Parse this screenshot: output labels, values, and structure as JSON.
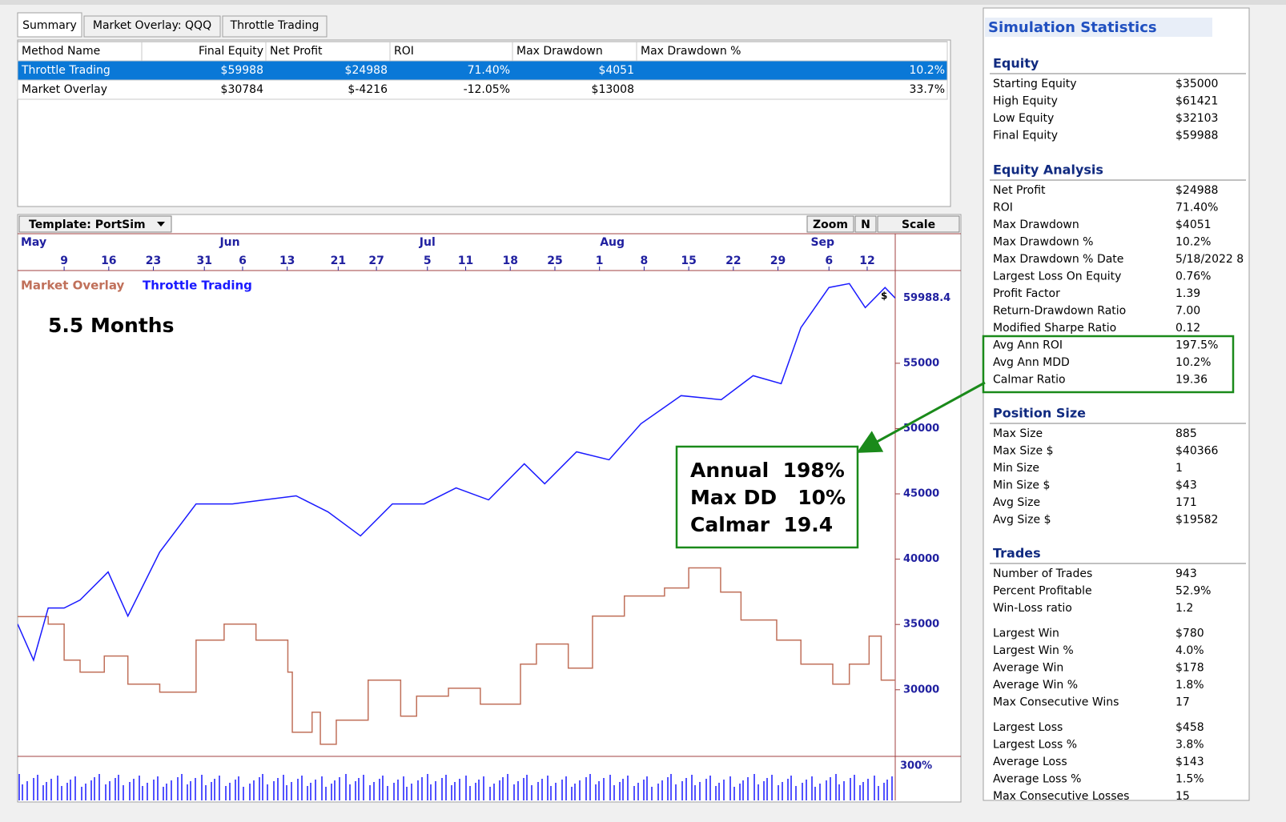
{
  "tabs": [
    "Summary",
    "Market Overlay: QQQ",
    "Throttle Trading"
  ],
  "table": {
    "headers": [
      "Method Name",
      "Final Equity",
      "Net Profit",
      "ROI",
      "Max Drawdown",
      "Max Drawdown %"
    ],
    "rows": [
      [
        "Throttle Trading",
        "$59988",
        "$24988",
        "71.40%",
        "$4051",
        "10.2%"
      ],
      [
        "Market Overlay",
        "$30784",
        "$-4216",
        "-12.05%",
        "$13008",
        "33.7%"
      ]
    ]
  },
  "toolbar": {
    "template": "Template: PortSim",
    "zoom": "Zoom",
    "n": "N",
    "scale": "Scale"
  },
  "chart_data": {
    "type": "line",
    "x_months": [
      {
        "value": 122,
        "label": "May"
      },
      {
        "value": 155,
        "label": "Jun"
      },
      {
        "value": 186,
        "label": "Jul"
      },
      {
        "value": 215,
        "label": "Aug"
      },
      {
        "value": 248,
        "label": "Sep"
      }
    ],
    "xticks": [
      {
        "value": 129,
        "label": "9"
      },
      {
        "value": 136,
        "label": "16"
      },
      {
        "value": 143,
        "label": "23"
      },
      {
        "value": 151,
        "label": "31"
      },
      {
        "value": 157,
        "label": "6"
      },
      {
        "value": 164,
        "label": "13"
      },
      {
        "value": 172,
        "label": "21"
      },
      {
        "value": 178,
        "label": "27"
      },
      {
        "value": 186,
        "label": "5"
      },
      {
        "value": 192,
        "label": "11"
      },
      {
        "value": 199,
        "label": "18"
      },
      {
        "value": 206,
        "label": "25"
      },
      {
        "value": 213,
        "label": "1"
      },
      {
        "value": 220,
        "label": "8"
      },
      {
        "value": 227,
        "label": "15"
      },
      {
        "value": 234,
        "label": "22"
      },
      {
        "value": 241,
        "label": "29"
      },
      {
        "value": 249,
        "label": "6"
      },
      {
        "value": 255,
        "label": "12"
      }
    ],
    "xlim": [
      121.7,
      259.4
    ],
    "ylim": [
      24900,
      62100
    ],
    "yticks": [
      30000,
      35000,
      40000,
      45000,
      50000,
      55000
    ],
    "last_value": 59988.4,
    "last_marker": "$",
    "lower_panel_label": "300%",
    "annotation": "5.5 Months",
    "callout": [
      "Annual  198%",
      "Max DD   10%",
      "Calmar  19.4"
    ],
    "series": [
      {
        "name": "Market Overlay",
        "color": "#c0705a",
        "step": true,
        "x": [
          121.7,
          126.5,
          129,
          131.5,
          135.3,
          139,
          144,
          149.7,
          154.1,
          159.1,
          164.1,
          164.8,
          167.9,
          169.2,
          171.7,
          176.7,
          181.8,
          184.3,
          189.3,
          194.3,
          200.6,
          203.1,
          208.1,
          211.9,
          216.9,
          223.2,
          227,
          232,
          235.2,
          240.8,
          244.6,
          249.6,
          252.2,
          255.3,
          257.2,
          259.4
        ],
        "values": [
          35600,
          35030,
          32270,
          31350,
          32580,
          30430,
          29820,
          33800,
          35030,
          33800,
          31350,
          26750,
          28280,
          25830,
          27670,
          30740,
          27980,
          29510,
          30120,
          28900,
          31960,
          33500,
          31660,
          35640,
          37180,
          37790,
          39330,
          37480,
          35340,
          33800,
          31960,
          30430,
          31960,
          34110,
          30740,
          30740
        ]
      },
      {
        "name": "Throttle Trading",
        "color": "#1a1aff",
        "step": false,
        "x": [
          121.7,
          124.2,
          126.5,
          129,
          131.5,
          135.9,
          139,
          144,
          149.7,
          155.4,
          160.4,
          165.4,
          170.4,
          175.5,
          180.5,
          185.5,
          190.5,
          195.6,
          201.2,
          204.4,
          209.4,
          214.5,
          219.5,
          225.8,
          232.1,
          237.1,
          241.5,
          244.6,
          249,
          252.2,
          254.7,
          257.8,
          259.4
        ],
        "values": [
          35030,
          32270,
          36260,
          36260,
          36870,
          39020,
          35640,
          40550,
          44230,
          44230,
          44540,
          44850,
          43620,
          41780,
          44230,
          44230,
          45460,
          44540,
          47300,
          45770,
          48220,
          47610,
          50370,
          52520,
          52210,
          54050,
          53440,
          57730,
          60800,
          61100,
          59260,
          60800,
          59990
        ]
      }
    ]
  },
  "stats": {
    "title": "Simulation Statistics",
    "sections": [
      {
        "heading": "Equity",
        "rows": [
          [
            "Starting Equity",
            "$35000"
          ],
          [
            "High Equity",
            "$61421"
          ],
          [
            "Low Equity",
            "$32103"
          ],
          [
            "Final Equity",
            "$59988"
          ]
        ]
      },
      {
        "heading": "Equity Analysis",
        "rows": [
          [
            "Net Profit",
            "$24988"
          ],
          [
            "ROI",
            "71.40%"
          ],
          [
            "Max Drawdown",
            "$4051"
          ],
          [
            "Max Drawdown %",
            "10.2%"
          ],
          [
            "Max Drawdown % Date",
            "5/18/2022 8"
          ],
          [
            "Largest Loss On Equity",
            "0.76%"
          ],
          [
            "Profit Factor",
            "1.39"
          ],
          [
            "Return-Drawdown Ratio",
            "7.00"
          ],
          [
            "Modified Sharpe Ratio",
            "0.12"
          ],
          [
            "Avg Ann ROI",
            "197.5%"
          ],
          [
            "Avg Ann MDD",
            "10.2%"
          ],
          [
            "Calmar Ratio",
            "19.36"
          ]
        ]
      },
      {
        "heading": "Position Size",
        "rows": [
          [
            "Max Size",
            "885"
          ],
          [
            "Max Size $",
            "$40366"
          ],
          [
            "Min Size",
            "1"
          ],
          [
            "Min Size $",
            "$43"
          ],
          [
            "Avg Size",
            "171"
          ],
          [
            "Avg Size $",
            "$19582"
          ]
        ]
      },
      {
        "heading": "Trades",
        "rows": [
          [
            "Number of Trades",
            "943"
          ],
          [
            "Percent Profitable",
            "52.9%"
          ],
          [
            "Win-Loss ratio",
            "1.2"
          ],
          [
            "Largest Win",
            "$780"
          ],
          [
            "Largest Win %",
            "4.0%"
          ],
          [
            "Average Win",
            "$178"
          ],
          [
            "Average Win %",
            "1.8%"
          ],
          [
            "Max Consecutive Wins",
            "17"
          ],
          [
            "Largest Loss",
            "$458"
          ],
          [
            "Largest Loss %",
            "3.8%"
          ],
          [
            "Average Loss",
            "$143"
          ],
          [
            "Average Loss %",
            "1.5%"
          ],
          [
            "Max Consecutive Losses",
            "15"
          ]
        ]
      }
    ]
  }
}
